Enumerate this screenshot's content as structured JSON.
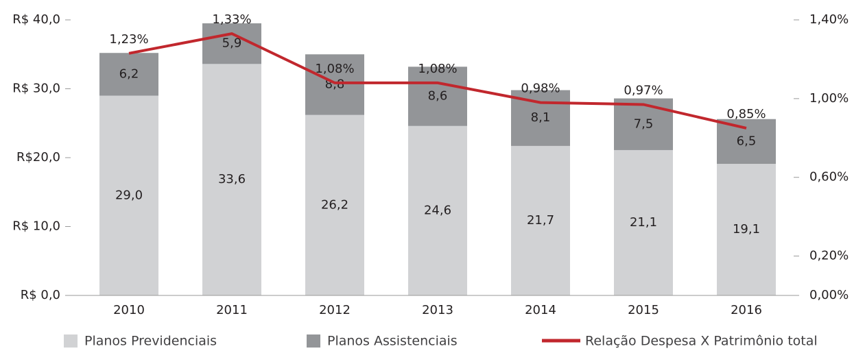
{
  "chart_data": {
    "type": "bar",
    "stacked": true,
    "categories": [
      "2010",
      "2011",
      "2012",
      "2013",
      "2014",
      "2015",
      "2016"
    ],
    "series": [
      {
        "name": "Planos Previdenciais",
        "color": "#d1d2d4",
        "values": [
          29.0,
          33.6,
          26.2,
          24.6,
          21.7,
          21.1,
          19.1
        ],
        "value_labels": [
          "29,0",
          "33,6",
          "26,2",
          "24,6",
          "21,7",
          "21,1",
          "19,1"
        ]
      },
      {
        "name": "Planos Assistenciais",
        "color": "#939598",
        "values": [
          6.2,
          5.9,
          8.8,
          8.6,
          8.1,
          7.5,
          6.5
        ],
        "value_labels": [
          "6,2",
          "5,9",
          "8,8",
          "8,6",
          "8,1",
          "7,5",
          "6,5"
        ]
      },
      {
        "name": "Relação Despesa X Patrimônio total",
        "type": "line",
        "axis": "y2",
        "color": "#c1272d",
        "values": [
          1.23,
          1.33,
          1.08,
          1.08,
          0.98,
          0.97,
          0.85
        ],
        "value_labels": [
          "1,23%",
          "1,33%",
          "1,08%",
          "1,08%",
          "0,98%",
          "0,97%",
          "0,85%"
        ]
      }
    ],
    "ylim": [
      0,
      40
    ],
    "yticks": [
      {
        "value": 0,
        "label": "R$ 0,0"
      },
      {
        "value": 10,
        "label": "R$ 10,0"
      },
      {
        "value": 20,
        "label": "R$20,0"
      },
      {
        "value": 30,
        "label": "R$ 30,0"
      },
      {
        "value": 40,
        "label": "R$ 40,0"
      }
    ],
    "y2lim": [
      0,
      1.4
    ],
    "y2ticks": [
      {
        "value": 0,
        "label": "0,00%"
      },
      {
        "value": 0.2,
        "label": "0,20%"
      },
      {
        "value": 0.6,
        "label": "0,60%"
      },
      {
        "value": 1.0,
        "label": "1,00%"
      },
      {
        "value": 1.4,
        "label": "1,40%"
      }
    ],
    "legend": "bottom"
  }
}
